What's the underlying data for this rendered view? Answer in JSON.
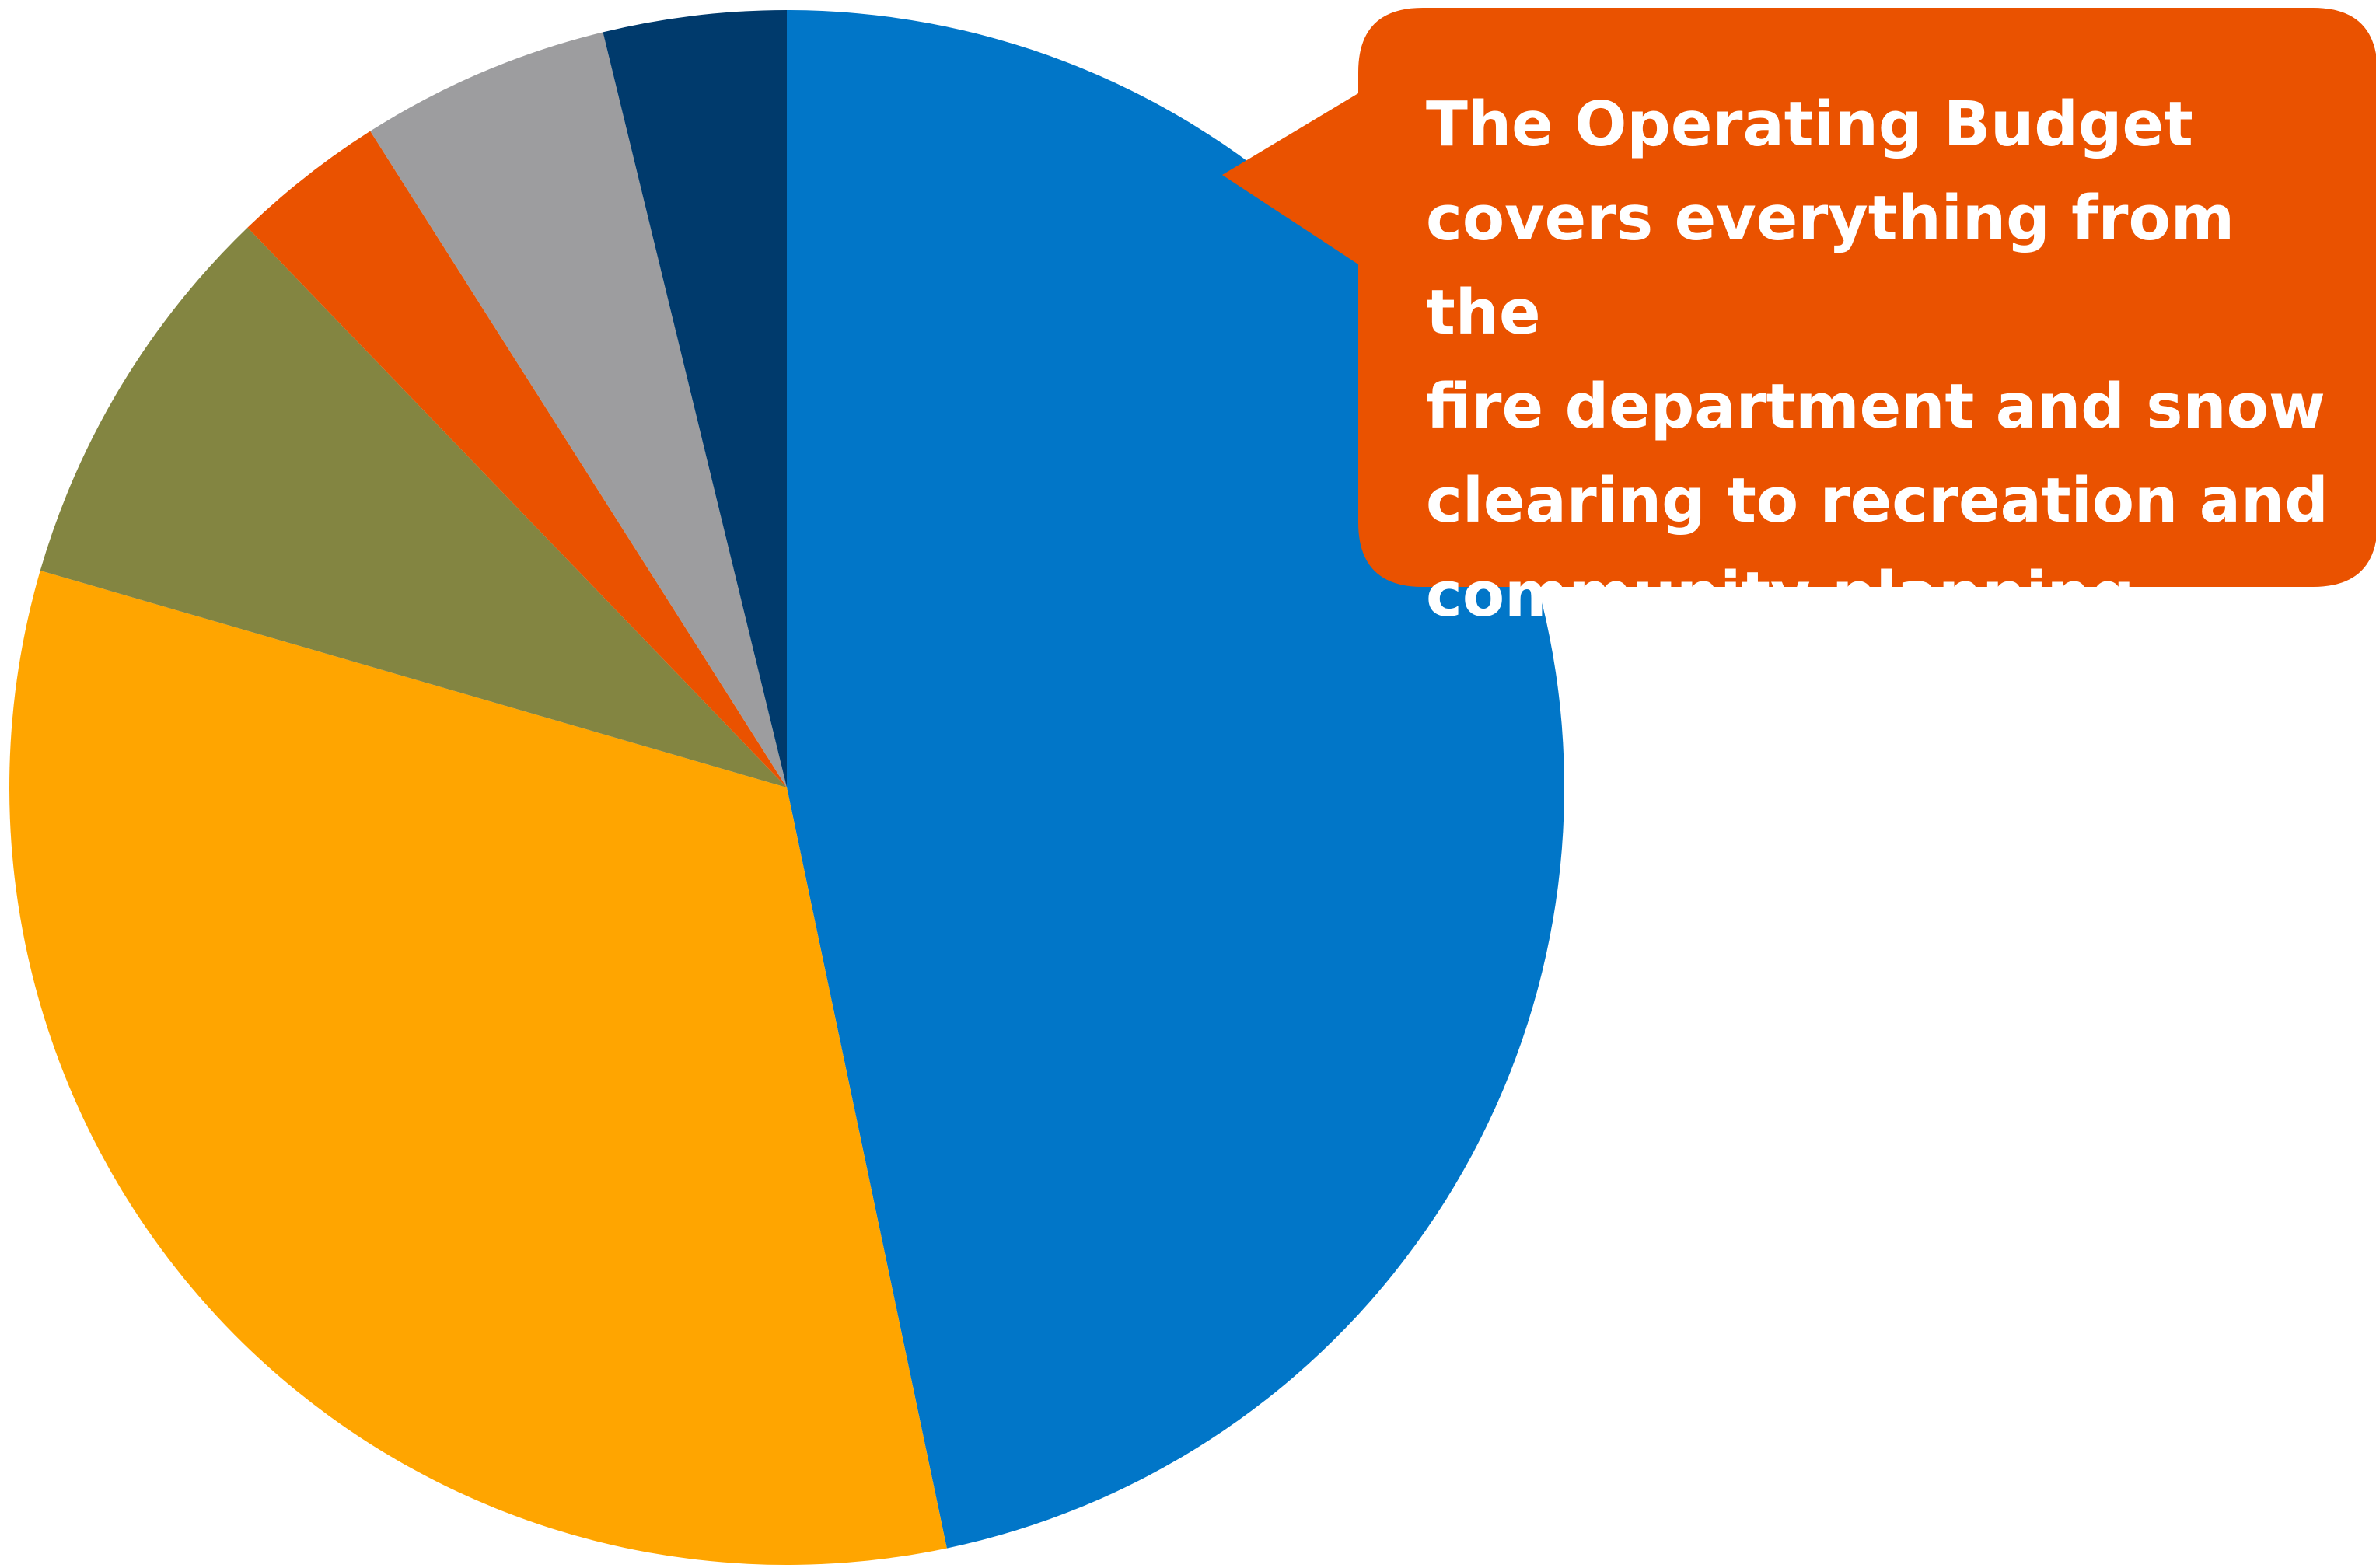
{
  "chart_data": {
    "type": "pie",
    "start_angle_deg": 0,
    "direction": "clockwise",
    "slices": [
      {
        "value": 46.7,
        "color": "#0176C8"
      },
      {
        "value": 32.8,
        "color": "#FFA500"
      },
      {
        "value": 8.3,
        "color": "#838541"
      },
      {
        "value": 3.2,
        "color": "#EA5200"
      },
      {
        "value": 5.2,
        "color": "#9D9D9F"
      },
      {
        "value": 3.8,
        "color": "#003A6C"
      }
    ],
    "legend": "none",
    "data_labels": "none"
  },
  "callout": {
    "text": "The Operating Budget\ncovers everything from the\nfire department and snow\nclearing to recreation and\ncommunity planning.",
    "background_color": "#EA5200",
    "text_color": "#FFFFFF"
  }
}
